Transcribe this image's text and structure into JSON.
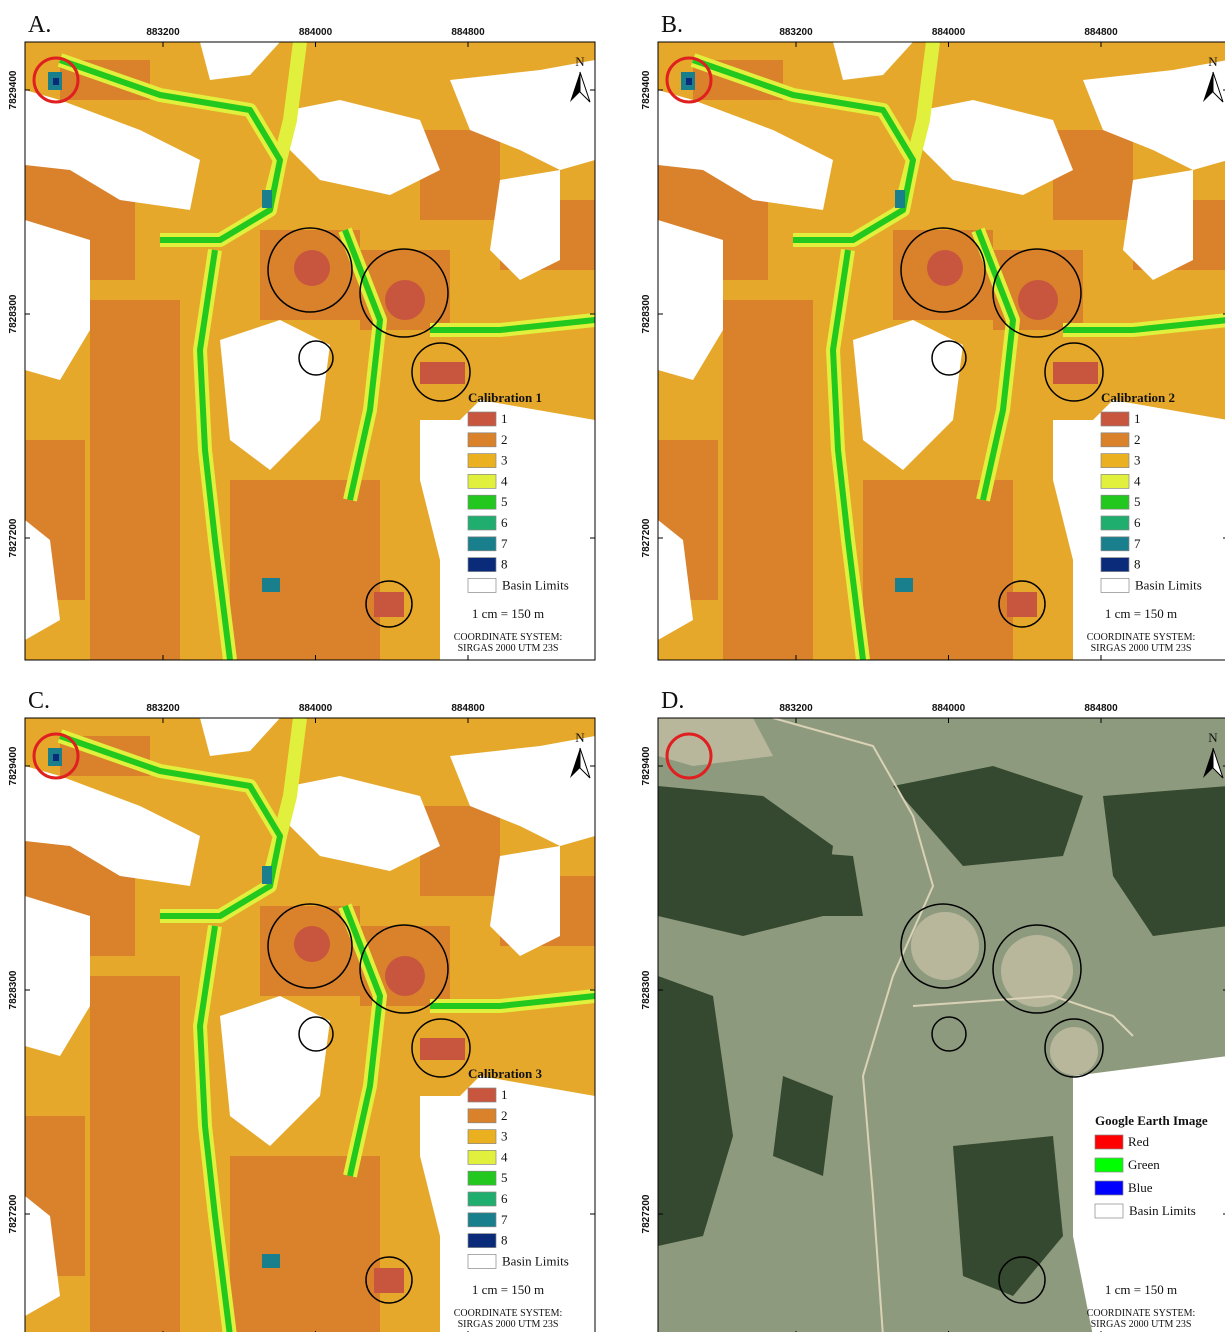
{
  "panels": [
    {
      "label": "A.",
      "legend_title": "Calibration 1",
      "legend": [
        {
          "label": "1",
          "color": "#c8553d"
        },
        {
          "label": "2",
          "color": "#d9822b"
        },
        {
          "label": "3",
          "color": "#eab020"
        },
        {
          "label": "4",
          "color": "#e1f03c"
        },
        {
          "label": "5",
          "color": "#22c81e"
        },
        {
          "label": "6",
          "color": "#1fae6e"
        },
        {
          "label": "7",
          "color": "#1a7f8c"
        },
        {
          "label": "8",
          "color": "#0a2a7a"
        },
        {
          "label": "Basin Limits",
          "color": "#ffffff"
        }
      ]
    },
    {
      "label": "B.",
      "legend_title": "Calibration 2",
      "legend": [
        {
          "label": "1",
          "color": "#c8553d"
        },
        {
          "label": "2",
          "color": "#d9822b"
        },
        {
          "label": "3",
          "color": "#eab020"
        },
        {
          "label": "4",
          "color": "#e1f03c"
        },
        {
          "label": "5",
          "color": "#22c81e"
        },
        {
          "label": "6",
          "color": "#1fae6e"
        },
        {
          "label": "7",
          "color": "#1a7f8c"
        },
        {
          "label": "8",
          "color": "#0a2a7a"
        },
        {
          "label": "Basin Limits",
          "color": "#ffffff"
        }
      ]
    },
    {
      "label": "C.",
      "legend_title": "Calibration 3",
      "legend": [
        {
          "label": "1",
          "color": "#c8553d"
        },
        {
          "label": "2",
          "color": "#d9822b"
        },
        {
          "label": "3",
          "color": "#eab020"
        },
        {
          "label": "4",
          "color": "#e1f03c"
        },
        {
          "label": "5",
          "color": "#22c81e"
        },
        {
          "label": "6",
          "color": "#1fae6e"
        },
        {
          "label": "7",
          "color": "#1a7f8c"
        },
        {
          "label": "8",
          "color": "#0a2a7a"
        },
        {
          "label": "Basin Limits",
          "color": "#ffffff"
        }
      ]
    },
    {
      "label": "D.",
      "legend_title": "Google Earth Image",
      "legend": [
        {
          "label": "Red",
          "color": "#ff0000"
        },
        {
          "label": "Green",
          "color": "#00ff00"
        },
        {
          "label": "Blue",
          "color": "#0000ff"
        },
        {
          "label": "Basin Limits",
          "color": "#ffffff"
        }
      ]
    }
  ],
  "x_ticks": [
    883200,
    884000,
    884800
  ],
  "y_ticks": [
    7829400,
    7828300,
    7827200
  ],
  "north": "N",
  "scale": "1 cm = 150 m",
  "coordinate_system": [
    "COORDINATE SYSTEM:",
    "SIRGAS 2000 UTM 23S"
  ]
}
